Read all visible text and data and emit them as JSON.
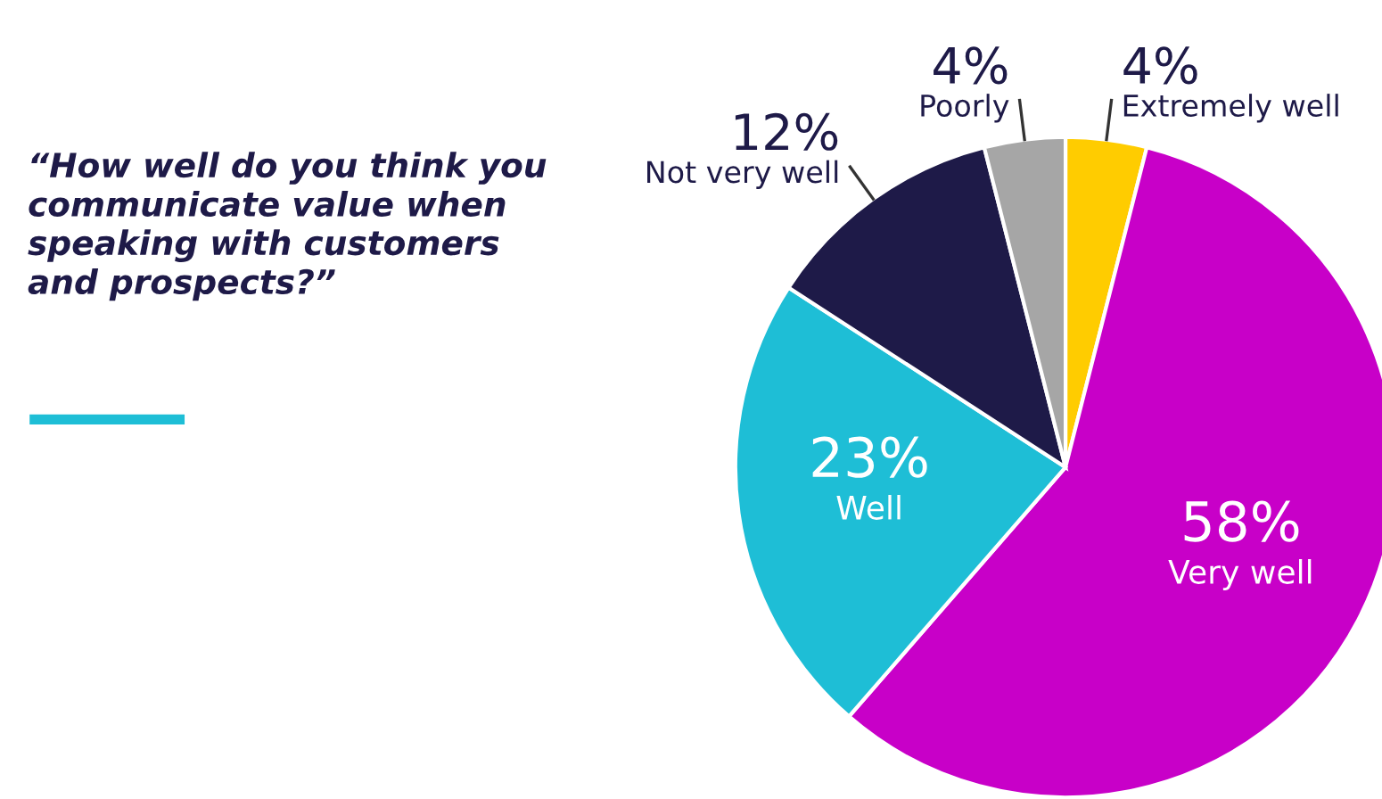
{
  "chart_data": {
    "type": "pie",
    "title": "“How well do you think you\ncommunicate value when\nspeaking with customers\nand prospects?”",
    "categories": [
      "Extremely well",
      "Very well",
      "Well",
      "Not very well",
      "Poorly"
    ],
    "values": [
      4,
      58,
      23,
      12,
      4
    ],
    "value_labels": [
      "4%",
      "58%",
      "23%",
      "12%",
      "4%"
    ],
    "colors": [
      "#ffcc00",
      "#c800c8",
      "#1ebed6",
      "#1e1a48",
      "#a6a6a6"
    ],
    "legend": false
  }
}
